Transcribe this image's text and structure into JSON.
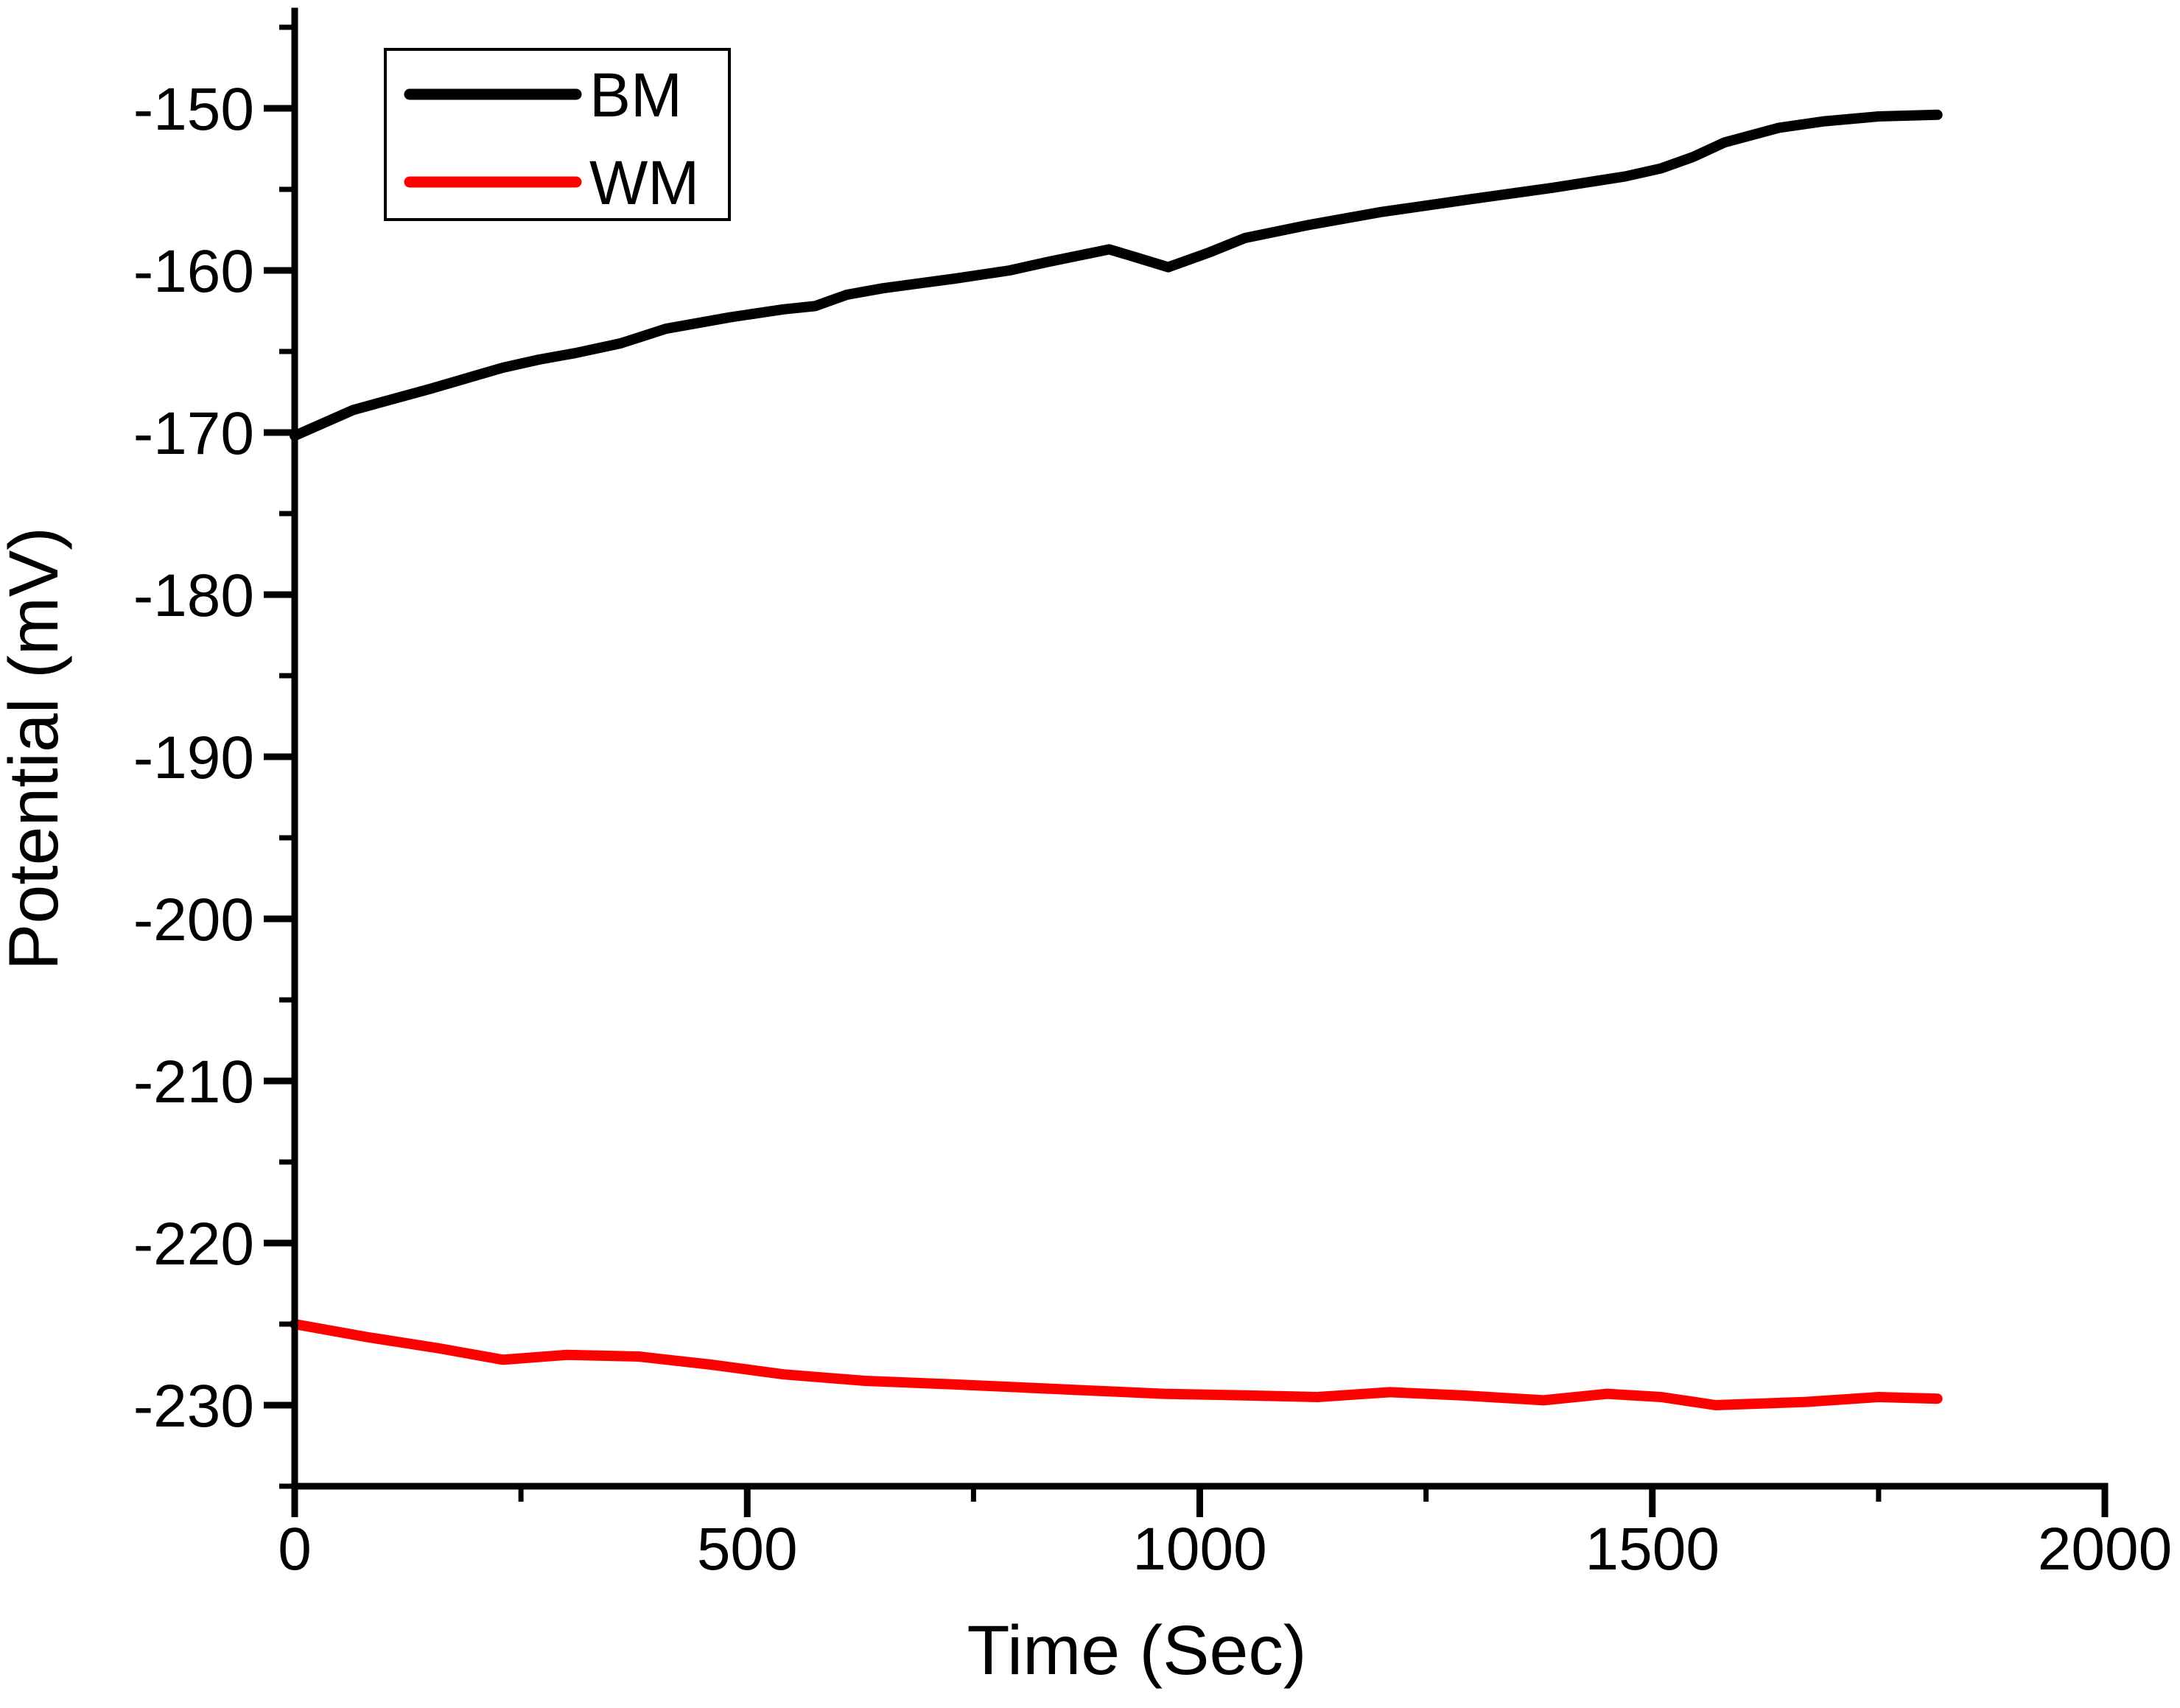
{
  "chart_data": {
    "type": "line",
    "title": "",
    "xlabel": "Time (Sec)",
    "ylabel": "Potential (mV)",
    "xlim": [
      0,
      2000
    ],
    "ylim": [
      -235,
      -144
    ],
    "grid": false,
    "x_major_ticks": [
      0,
      500,
      1000,
      1500,
      2000
    ],
    "x_tick_labels": [
      "0",
      "500",
      "1000",
      "1500",
      "2000"
    ],
    "x_minor_ticks": [
      250,
      750,
      1250,
      1750
    ],
    "y_major_ticks": [
      -230,
      -220,
      -210,
      -200,
      -190,
      -180,
      -170,
      -160,
      -150
    ],
    "y_tick_labels": [
      "-230",
      "-220",
      "-210",
      "-200",
      "-190",
      "-180",
      "-170",
      "-160",
      "-150"
    ],
    "y_minor_ticks": [
      -235,
      -225,
      -215,
      -205,
      -195,
      -185,
      -175,
      -165,
      -155,
      -145
    ],
    "legend": {
      "position": "top-left",
      "entries": [
        {
          "label": "BM",
          "color": "#000000"
        },
        {
          "label": "WM",
          "color": "#ff0000"
        }
      ]
    },
    "series": [
      {
        "name": "BM",
        "color": "#000000",
        "points": [
          [
            0,
            -170.2
          ],
          [
            65,
            -168.6
          ],
          [
            150,
            -167.3
          ],
          [
            230,
            -166.0
          ],
          [
            270,
            -165.5
          ],
          [
            310,
            -165.1
          ],
          [
            360,
            -164.5
          ],
          [
            410,
            -163.6
          ],
          [
            480,
            -162.9
          ],
          [
            540,
            -162.4
          ],
          [
            575,
            -162.2
          ],
          [
            610,
            -161.5
          ],
          [
            650,
            -161.1
          ],
          [
            730,
            -160.5
          ],
          [
            790,
            -160.0
          ],
          [
            830,
            -159.5
          ],
          [
            900,
            -158.7
          ],
          [
            930,
            -159.2
          ],
          [
            965,
            -159.8
          ],
          [
            1010,
            -158.9
          ],
          [
            1050,
            -158.0
          ],
          [
            1120,
            -157.2
          ],
          [
            1200,
            -156.4
          ],
          [
            1300,
            -155.6
          ],
          [
            1390,
            -154.9
          ],
          [
            1470,
            -154.2
          ],
          [
            1510,
            -153.7
          ],
          [
            1545,
            -153.0
          ],
          [
            1580,
            -152.1
          ],
          [
            1640,
            -151.2
          ],
          [
            1690,
            -150.8
          ],
          [
            1750,
            -150.5
          ],
          [
            1815,
            -150.4
          ]
        ]
      },
      {
        "name": "WM",
        "color": "#ff0000",
        "points": [
          [
            0,
            -225.0
          ],
          [
            80,
            -225.8
          ],
          [
            160,
            -226.5
          ],
          [
            230,
            -227.2
          ],
          [
            300,
            -226.9
          ],
          [
            380,
            -227.0
          ],
          [
            460,
            -227.5
          ],
          [
            540,
            -228.1
          ],
          [
            630,
            -228.5
          ],
          [
            720,
            -228.7
          ],
          [
            800,
            -228.9
          ],
          [
            880,
            -229.1
          ],
          [
            960,
            -229.3
          ],
          [
            1050,
            -229.4
          ],
          [
            1130,
            -229.5
          ],
          [
            1210,
            -229.2
          ],
          [
            1290,
            -229.4
          ],
          [
            1380,
            -229.7
          ],
          [
            1450,
            -229.3
          ],
          [
            1510,
            -229.5
          ],
          [
            1570,
            -230.0
          ],
          [
            1670,
            -229.8
          ],
          [
            1750,
            -229.5
          ],
          [
            1815,
            -229.6
          ]
        ]
      }
    ]
  },
  "colors": {
    "axis": "#000000",
    "background": "#ffffff"
  }
}
